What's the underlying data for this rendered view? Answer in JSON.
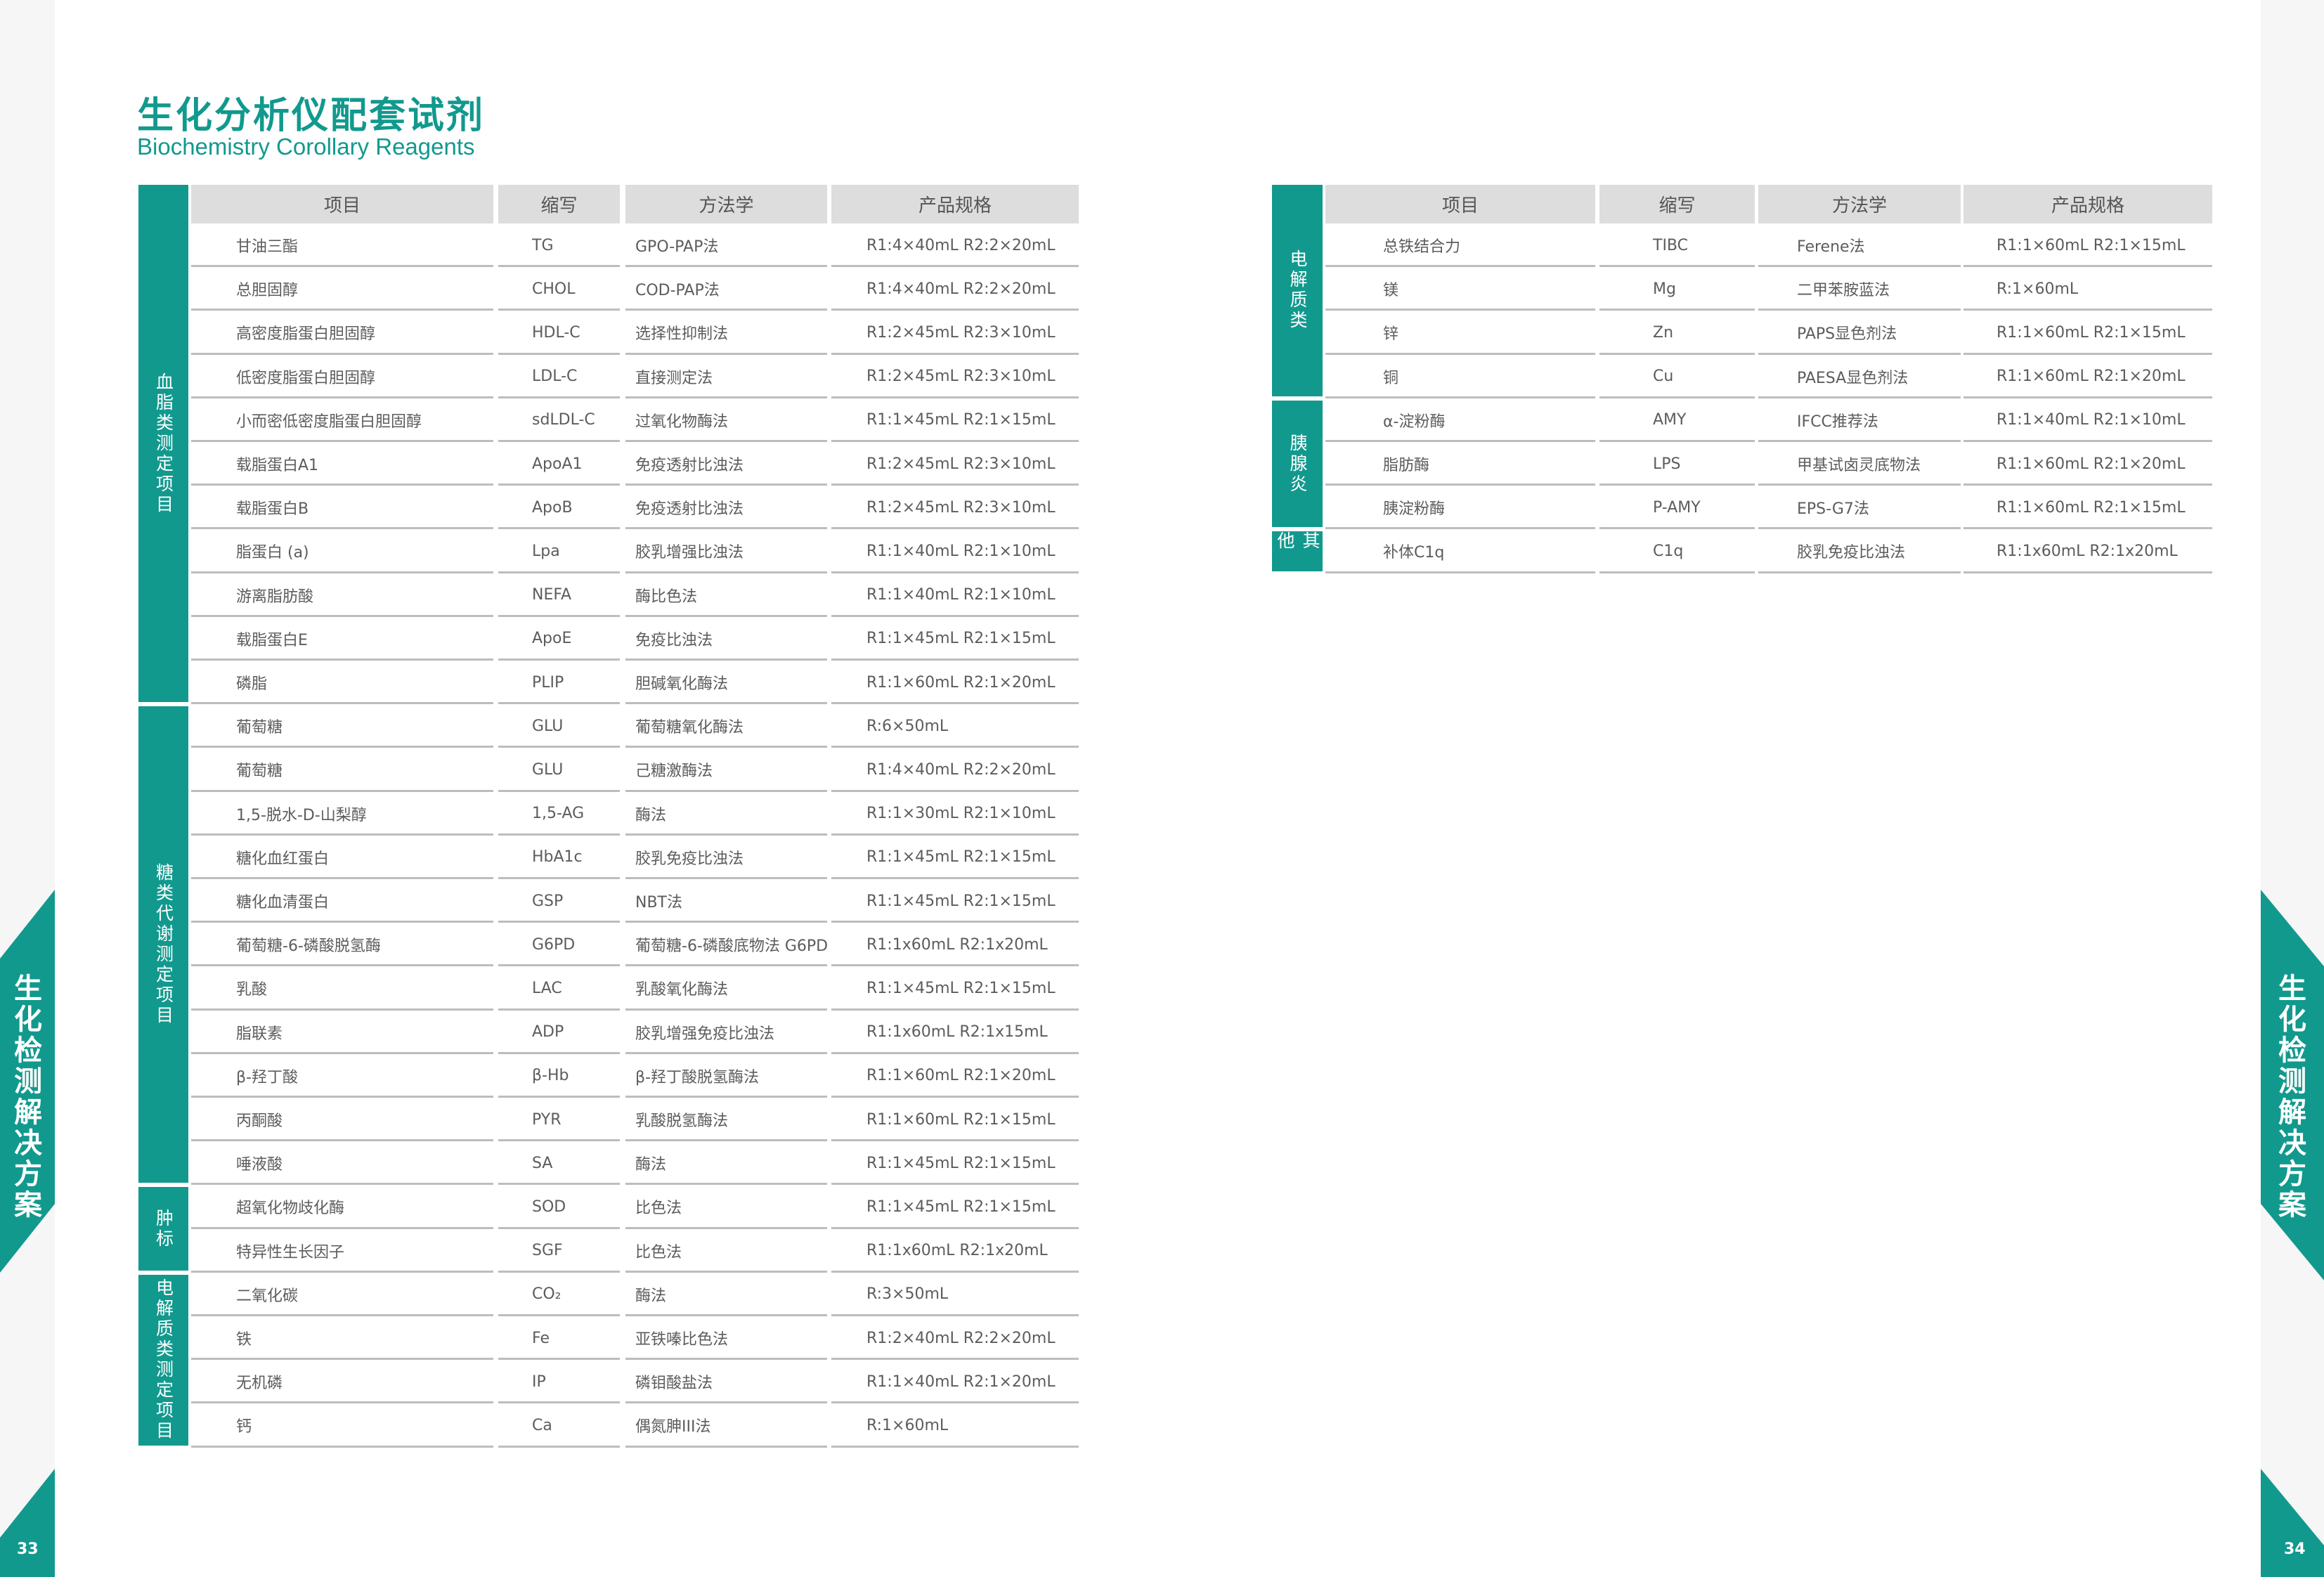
{
  "header": {
    "title": "生化分析仪配套试剂",
    "subtitle": "Biochemistry Corollary Reagents"
  },
  "side_tab": {
    "label": "生化检测解决方案"
  },
  "pages": {
    "left": "33",
    "right": "34"
  },
  "colors": {
    "accent": "#12998e",
    "header_bg": "#dddddd",
    "text": "#5c5c5c"
  },
  "columns": [
    "项目",
    "缩写",
    "方法学",
    "产品规格"
  ],
  "left_table": {
    "groups": [
      {
        "category": "血脂类测定项目",
        "rows": [
          [
            "甘油三酯",
            "TG",
            "GPO-PAP法",
            "R1:4×40mL  R2:2×20mL"
          ],
          [
            "总胆固醇",
            "CHOL",
            "COD-PAP法",
            "R1:4×40mL  R2:2×20mL"
          ],
          [
            "高密度脂蛋白胆固醇",
            "HDL-C",
            "选择性抑制法",
            "R1:2×45mL  R2:3×10mL"
          ],
          [
            "低密度脂蛋白胆固醇",
            "LDL-C",
            "直接测定法",
            "R1:2×45mL  R2:3×10mL"
          ],
          [
            "小而密低密度脂蛋白胆固醇",
            "sdLDL-C",
            "过氧化物酶法",
            "R1:1×45mL  R2:1×15mL"
          ],
          [
            "载脂蛋白A1",
            "ApoA1",
            "免疫透射比浊法",
            "R1:2×45mL  R2:3×10mL"
          ],
          [
            "载脂蛋白B",
            "ApoB",
            "免疫透射比浊法",
            "R1:2×45mL  R2:3×10mL"
          ],
          [
            "脂蛋白 (a)",
            "Lpa",
            "胶乳增强比浊法",
            "R1:1×40mL  R2:1×10mL"
          ],
          [
            "游离脂肪酸",
            "NEFA",
            "酶比色法",
            "R1:1×40mL   R2:1×10mL"
          ],
          [
            "载脂蛋白E",
            "ApoE",
            "免疫比浊法",
            "R1:1×45mL  R2:1×15mL"
          ],
          [
            "磷脂",
            "PLIP",
            "胆碱氧化酶法",
            "R1:1×60mL  R2:1×20mL"
          ]
        ]
      },
      {
        "category": "糖类代谢测定项目",
        "rows": [
          [
            "葡萄糖",
            "GLU",
            "葡萄糖氧化酶法",
            "R:6×50mL"
          ],
          [
            "葡萄糖",
            "GLU",
            "己糖激酶法",
            "R1:4×40mL  R2:2×20mL"
          ],
          [
            "1,5-脱水-D-山梨醇",
            "1,5-AG",
            "酶法",
            "R1:1×30mL  R2:1×10mL"
          ],
          [
            "糖化血红蛋白",
            "HbA1c",
            "胶乳免疫比浊法",
            "R1:1×45mL  R2:1×15mL"
          ],
          [
            "糖化血清蛋白",
            "GSP",
            "NBT法",
            "R1:1×45mL  R2:1×15mL"
          ],
          [
            "葡萄糖-6-磷酸脱氢酶",
            "G6PD",
            "葡萄糖-6-磷酸底物法 G6PD",
            "R1:1x60mL R2:1x20mL"
          ],
          [
            "乳酸",
            "LAC",
            "乳酸氧化酶法",
            "R1:1×45mL  R2:1×15mL"
          ],
          [
            "脂联素",
            "ADP",
            "胶乳增强免疫比浊法",
            "R1:1x60mL R2:1x15mL"
          ],
          [
            "β-羟丁酸",
            "β-Hb",
            "β-羟丁酸脱氢酶法",
            "R1:1×60mL  R2:1×20mL"
          ],
          [
            "丙酮酸",
            "PYR",
            "乳酸脱氢酶法",
            "R1:1×60mL  R2:1×15mL"
          ],
          [
            "唾液酸",
            "SA",
            "酶法",
            "R1:1×45mL   R2:1×15mL"
          ]
        ]
      },
      {
        "category": "肿标",
        "rows": [
          [
            "超氧化物歧化酶",
            "SOD",
            "比色法",
            "R1:1×45mL  R2:1×15mL"
          ],
          [
            "特异性生长因子",
            "SGF",
            "比色法",
            "R1:1x60mL R2:1x20mL"
          ]
        ]
      },
      {
        "category": "电解质类测定项目",
        "rows": [
          [
            "二氧化碳",
            "CO₂",
            "酶法",
            "R:3×50mL"
          ],
          [
            "铁",
            "Fe",
            "亚铁嗪比色法",
            "R1:2×40mL  R2:2×20mL"
          ],
          [
            "无机磷",
            "IP",
            "磷钼酸盐法",
            "R1:1×40mL  R2:1×20mL"
          ],
          [
            "钙",
            "Ca",
            "偶氮胂III法",
            "R:1×60mL"
          ]
        ]
      }
    ]
  },
  "right_table": {
    "groups": [
      {
        "category": "电解质类",
        "rows": [
          [
            "总铁结合力",
            "TIBC",
            "Ferene法",
            "R1:1×60mL  R2:1×15mL"
          ],
          [
            "镁",
            "Mg",
            "二甲苯胺蓝法",
            "R:1×60mL"
          ],
          [
            "锌",
            "Zn",
            "PAPS显色剂法",
            "R1:1×60mL  R2:1×15mL"
          ],
          [
            "铜",
            "Cu",
            "PAESA显色剂法",
            "R1:1×60mL  R2:1×20mL"
          ]
        ]
      },
      {
        "category": "胰腺炎",
        "rows": [
          [
            "α-淀粉酶",
            "AMY",
            "IFCC推荐法",
            "R1:1×40mL  R2:1×10mL"
          ],
          [
            "脂肪酶",
            "LPS",
            "甲基试卤灵底物法",
            "R1:1×60mL  R2:1×20mL"
          ],
          [
            "胰淀粉酶",
            "P-AMY",
            "EPS-G7法",
            "R1:1×60mL  R2:1×15mL"
          ]
        ]
      },
      {
        "category": "其他",
        "rows": [
          [
            "补体C1q",
            "C1q",
            "胶乳免疫比浊法",
            "R1:1x60mL R2:1x20mL"
          ]
        ]
      }
    ]
  }
}
